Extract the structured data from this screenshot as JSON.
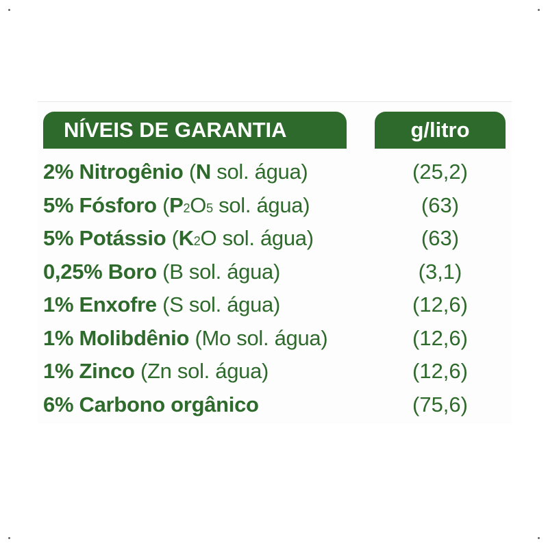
{
  "table": {
    "header_left": "NÍVEIS DE GARANTIA",
    "header_right": "g/litro",
    "rows": [
      {
        "main": "2% Nitrogênio",
        "note_open": "(",
        "note_bold": "N",
        "note_rest": " sol. água)",
        "value": "(25,2)"
      },
      {
        "main": "5% Fósforo",
        "note_open": "(",
        "note_bold": "P",
        "sub1": "2",
        "mid": "O",
        "sub2": "5",
        "note_rest": " sol. água)",
        "value": "(63)"
      },
      {
        "main": "5% Potássio",
        "note_open": "(",
        "note_bold": "K",
        "sub1": "2",
        "note_rest": "O sol. água)",
        "value": "(63)"
      },
      {
        "main": "0,25% Boro",
        "note": "(B sol. água)",
        "value": "(3,1)"
      },
      {
        "main": "1% Enxofre",
        "note": "(S sol. água)",
        "value": "(12,6)"
      },
      {
        "main": "1% Molibdênio",
        "note": "(Mo sol. água)",
        "value": "(12,6)"
      },
      {
        "main": "1% Zinco",
        "note": "(Zn sol. água)",
        "value": "(12,6)"
      },
      {
        "main": "6% Carbono orgânico",
        "value": "(75,6)"
      }
    ],
    "colors": {
      "green": "#2e6a2b",
      "header_text": "#ffffff"
    }
  }
}
